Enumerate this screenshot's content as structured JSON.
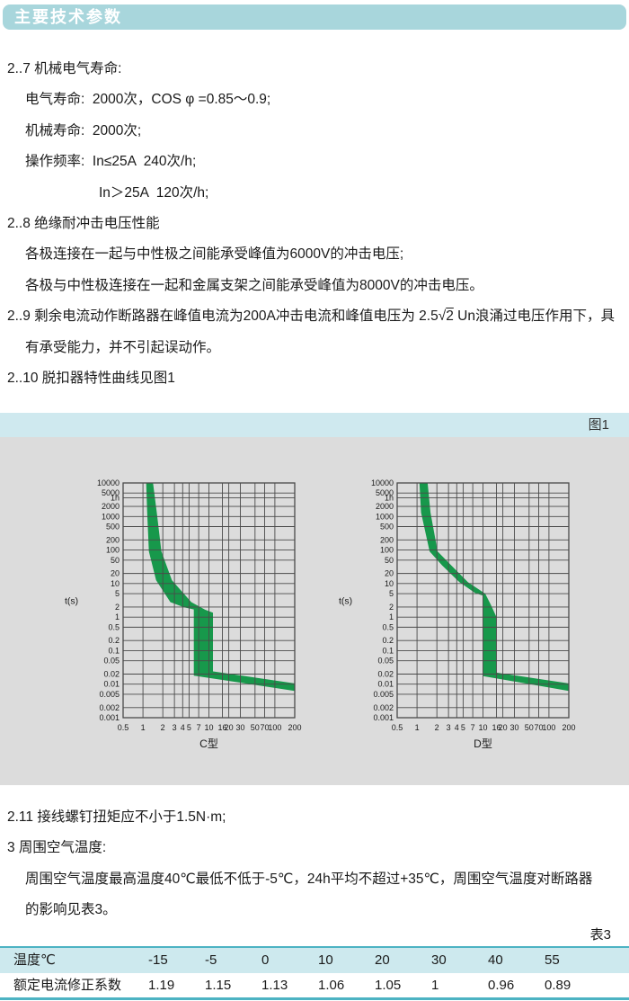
{
  "colors": {
    "header_bar": "#a8d6dc",
    "header_text": "#ffffff",
    "figure_strip": "#cfe9ef",
    "figure_bg": "#dcdcdc",
    "curve_band": "#17984b",
    "chart_grid": "#4a4a4a",
    "table_border": "#4db3c3",
    "table_header_bg": "#cde9ee",
    "text": "#1a1a1a"
  },
  "header": {
    "title": "主要技术参数"
  },
  "sections_top": {
    "lines": [
      {
        "indent": 0,
        "text": "2..7 机械电气寿命:"
      },
      {
        "indent": 1,
        "text": "电气寿命:  2000次，COS φ =0.85～0.9;"
      },
      {
        "indent": 1,
        "text": "机械寿命:  2000次;"
      },
      {
        "indent": 1,
        "text": "操作频率:  In≤25A  240次/h;"
      },
      {
        "indent": 2,
        "text": "In＞25A  120次/h;"
      },
      {
        "indent": 0,
        "text": "2..8 绝缘耐冲击电压性能"
      },
      {
        "indent": 1,
        "text": "各极连接在一起与中性极之间能承受峰值为6000V的冲击电压;"
      },
      {
        "indent": 1,
        "text": "各极与中性极连接在一起和金属支架之间能承受峰值为8000V的冲击电压。"
      },
      {
        "indent": 0,
        "parts": [
          {
            "t": "2..9 剩余电流动作断路器在峰值电流为200A冲击电流和峰值电压为 2.5"
          },
          {
            "t": "√"
          },
          {
            "t": "2",
            "sqrt": true
          },
          {
            "t": " Un浪涌过电压作用下，具"
          }
        ]
      },
      {
        "indent": 1,
        "text": "有承受能力，并不引起误动作。"
      },
      {
        "indent": 0,
        "text": "2..10 脱扣器特性曲线见图1"
      }
    ]
  },
  "figure": {
    "label": "图1"
  },
  "chart_data": [
    {
      "type": "area",
      "name": "C型",
      "y_axis_label": "t(s)",
      "xscale": "log",
      "yscale": "log",
      "xlim": [
        0.5,
        200
      ],
      "ylim": [
        0.001,
        10000
      ],
      "x_ticks": [
        [
          "0.5",
          0.5
        ],
        [
          "1",
          1
        ],
        [
          "2",
          2
        ],
        [
          "3",
          3
        ],
        [
          "4",
          4
        ],
        [
          "5",
          5
        ],
        [
          "7",
          7
        ],
        [
          "10",
          10
        ],
        [
          "16",
          16
        ],
        [
          "20",
          20
        ],
        [
          "30",
          30
        ],
        [
          "50",
          50
        ],
        [
          "70",
          70
        ],
        [
          "100",
          100
        ],
        [
          "200",
          200
        ]
      ],
      "y_ticks": [
        [
          "10000",
          10000
        ],
        [
          "5000",
          5000
        ],
        [
          "1h",
          3600
        ],
        [
          "2000",
          2000
        ],
        [
          "1000",
          1000
        ],
        [
          "500",
          500
        ],
        [
          "200",
          200
        ],
        [
          "100",
          100
        ],
        [
          "50",
          50
        ],
        [
          "20",
          20
        ],
        [
          "10",
          10
        ],
        [
          "5",
          5
        ],
        [
          "2",
          2
        ],
        [
          "1",
          1
        ],
        [
          "0.5",
          0.5
        ],
        [
          "0.2",
          0.2
        ],
        [
          "0.1",
          0.1
        ],
        [
          "0.05",
          0.05
        ],
        [
          "0.02",
          0.02
        ],
        [
          "0.01",
          0.01
        ],
        [
          "0.005",
          0.005
        ],
        [
          "0.002",
          0.002
        ],
        [
          "0.001",
          0.001
        ]
      ],
      "band_polygon": [
        [
          1.12,
          10000
        ],
        [
          1.16,
          1300
        ],
        [
          1.23,
          91
        ],
        [
          1.58,
          12.6
        ],
        [
          2.6,
          2.8
        ],
        [
          4.2,
          1.95
        ],
        [
          5.9,
          1.7
        ],
        [
          5.9,
          0.018
        ],
        [
          200,
          0.0063
        ],
        [
          200,
          0.0105
        ],
        [
          11.5,
          0.024
        ],
        [
          11.5,
          1.35
        ],
        [
          8.8,
          1.65
        ],
        [
          5.4,
          2.8
        ],
        [
          2.75,
          12.6
        ],
        [
          1.9,
          91
        ],
        [
          1.62,
          1300
        ],
        [
          1.42,
          10000
        ]
      ]
    },
    {
      "type": "area",
      "name": "D型",
      "y_axis_label": "t(s)",
      "xscale": "log",
      "yscale": "log",
      "xlim": [
        0.5,
        200
      ],
      "ylim": [
        0.001,
        10000
      ],
      "x_ticks": [
        [
          "0.5",
          0.5
        ],
        [
          "1",
          1
        ],
        [
          "2",
          2
        ],
        [
          "3",
          3
        ],
        [
          "4",
          4
        ],
        [
          "5",
          5
        ],
        [
          "7",
          7
        ],
        [
          "10",
          10
        ],
        [
          "16",
          16
        ],
        [
          "20",
          20
        ],
        [
          "30",
          30
        ],
        [
          "50",
          50
        ],
        [
          "70",
          70
        ],
        [
          "100",
          100
        ],
        [
          "200",
          200
        ]
      ],
      "y_ticks": [
        [
          "10000",
          10000
        ],
        [
          "5000",
          5000
        ],
        [
          "1h",
          3600
        ],
        [
          "2000",
          2000
        ],
        [
          "1000",
          1000
        ],
        [
          "500",
          500
        ],
        [
          "200",
          200
        ],
        [
          "100",
          100
        ],
        [
          "50",
          50
        ],
        [
          "20",
          20
        ],
        [
          "10",
          10
        ],
        [
          "5",
          5
        ],
        [
          "2",
          2
        ],
        [
          "1",
          1
        ],
        [
          "0.5",
          0.5
        ],
        [
          "0.2",
          0.2
        ],
        [
          "0.1",
          0.1
        ],
        [
          "0.05",
          0.05
        ],
        [
          "0.02",
          0.02
        ],
        [
          "0.01",
          0.01
        ],
        [
          "0.005",
          0.005
        ],
        [
          "0.002",
          0.002
        ],
        [
          "0.001",
          0.001
        ]
      ],
      "band_polygon": [
        [
          1.09,
          10000
        ],
        [
          1.15,
          1300
        ],
        [
          1.55,
          91
        ],
        [
          2.4,
          35
        ],
        [
          4.4,
          11
        ],
        [
          7.6,
          5.2
        ],
        [
          10,
          4.4
        ],
        [
          10,
          0.0174
        ],
        [
          200,
          0.0063
        ],
        [
          200,
          0.0105
        ],
        [
          16,
          0.022
        ],
        [
          16,
          1.0
        ],
        [
          13.2,
          2.3
        ],
        [
          10.8,
          5
        ],
        [
          5.9,
          11
        ],
        [
          3.3,
          35
        ],
        [
          2.05,
          91
        ],
        [
          1.6,
          1300
        ],
        [
          1.45,
          10000
        ]
      ]
    }
  ],
  "sections_bottom": {
    "lines": [
      {
        "indent": 0,
        "text": "2.11 接线螺钉扭矩应不小于1.5N·m;"
      },
      {
        "indent": 0,
        "text": "3 周围空气温度:"
      },
      {
        "indent": 1,
        "text": "周围空气温度最高温度40℃最低不低于-5℃，24h平均不超过+35℃，周围空气温度对断路器"
      },
      {
        "indent": 1,
        "text": "的影响见表3。"
      }
    ]
  },
  "table3": {
    "label": "表3",
    "header_row": [
      "温度℃",
      "-15",
      "-5",
      "0",
      "10",
      "20",
      "30",
      "40",
      "55"
    ],
    "data_row": [
      "额定电流修正系数",
      "1.19",
      "1.15",
      "1.13",
      "1.06",
      "1.05",
      "1",
      "0.96",
      "0.89"
    ]
  }
}
